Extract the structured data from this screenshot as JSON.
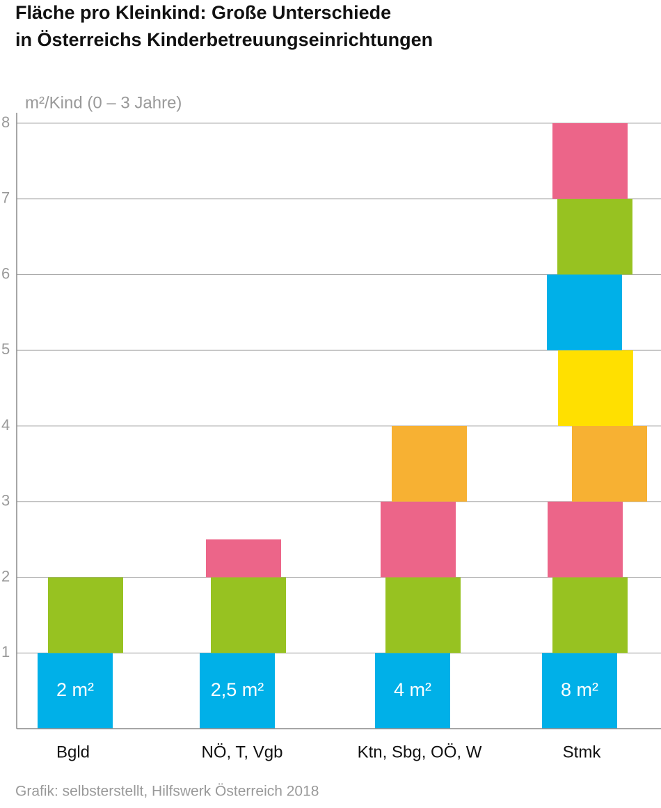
{
  "chart_data": {
    "type": "stacked-blocks",
    "title": [
      "Fläche pro Kleinkind: Große Unterschiede",
      "in Österreichs Kinderbetreuungseinrichtungen"
    ],
    "y_label": "m²/Kind (0 – 3 Jahre)",
    "source": "Grafik: selbsterstellt, Hilfswerk Österreich 2018",
    "categories": [
      "Bgld",
      "NÖ, T, Vgb",
      "Ktn, Sbg, OÖ, W",
      "Stmk"
    ],
    "totals": [
      2,
      2.5,
      4,
      8
    ],
    "total_labels": [
      "2 m²",
      "2,5 m²",
      "4 m²",
      "8 m²"
    ],
    "series": [
      {
        "color": "#00b0e8",
        "values": [
          1,
          1,
          1,
          1
        ]
      },
      {
        "color": "#97c221",
        "values": [
          1,
          1,
          1,
          1
        ]
      },
      {
        "color": "#ec6589",
        "values": [
          null,
          0.5,
          1,
          1
        ]
      },
      {
        "color": "#f7b133",
        "values": [
          null,
          null,
          1,
          1
        ]
      },
      {
        "color": "#ffe000",
        "values": [
          null,
          null,
          null,
          1
        ]
      },
      {
        "color": "#00b0e8",
        "values": [
          null,
          null,
          null,
          1
        ]
      },
      {
        "color": "#97c221",
        "values": [
          null,
          null,
          null,
          1
        ]
      },
      {
        "color": "#ec6589",
        "values": [
          null,
          null,
          null,
          1
        ]
      }
    ],
    "ylim": [
      0,
      8
    ],
    "yticks": [
      1,
      2,
      3,
      4,
      5,
      6,
      7,
      8
    ],
    "grid": true
  }
}
